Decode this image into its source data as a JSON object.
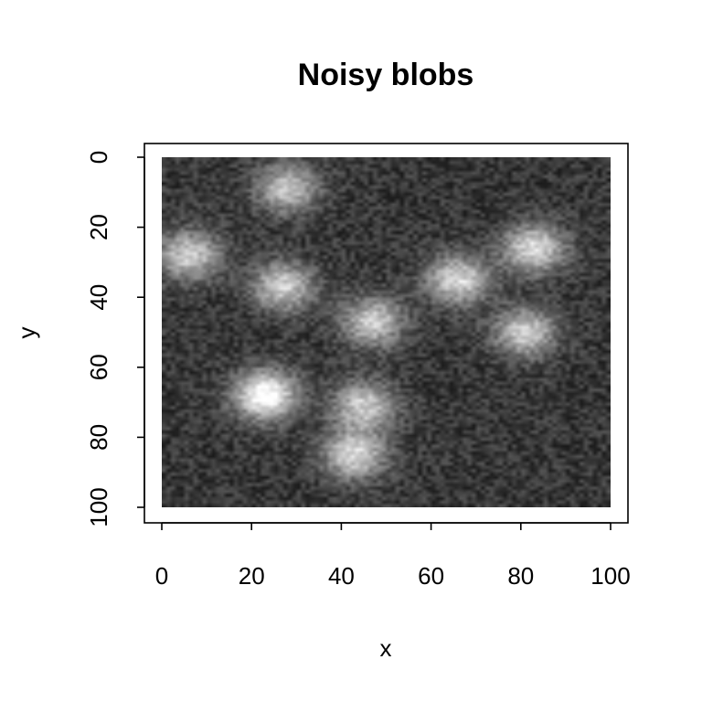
{
  "chart_data": {
    "type": "heatmap",
    "title": "Noisy blobs",
    "xlabel": "x",
    "ylabel": "y",
    "xlim": [
      0,
      100
    ],
    "ylim": [
      0,
      100
    ],
    "y_reversed": true,
    "x_ticks": [
      "0",
      "20",
      "40",
      "60",
      "80",
      "100"
    ],
    "y_ticks": [
      "0",
      "20",
      "40",
      "60",
      "80",
      "100"
    ],
    "grid": false,
    "colormap": "grayscale",
    "background_level": 0.22,
    "noise_level": 0.12,
    "blobs": [
      {
        "x": 28,
        "y": 9,
        "intensity": 0.55
      },
      {
        "x": 6,
        "y": 28,
        "intensity": 0.6
      },
      {
        "x": 27,
        "y": 37,
        "intensity": 0.6
      },
      {
        "x": 47,
        "y": 47,
        "intensity": 0.6
      },
      {
        "x": 66,
        "y": 35,
        "intensity": 0.65
      },
      {
        "x": 83,
        "y": 26,
        "intensity": 0.65
      },
      {
        "x": 81,
        "y": 50,
        "intensity": 0.6
      },
      {
        "x": 23,
        "y": 68,
        "intensity": 0.85
      },
      {
        "x": 45,
        "y": 71,
        "intensity": 0.6
      },
      {
        "x": 43,
        "y": 85,
        "intensity": 0.65
      }
    ]
  }
}
